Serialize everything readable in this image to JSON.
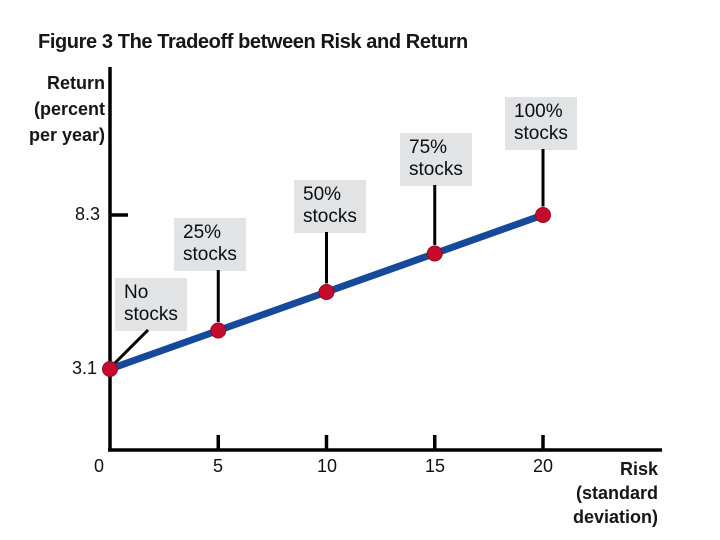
{
  "title": "Figure 3 The Tradeoff between Risk and Return",
  "chart_data": {
    "type": "line",
    "title": "Figure 3 The Tradeoff between Risk and Return",
    "xlabel": "Risk (standard deviation)",
    "ylabel": "Return (percent per year)",
    "x": [
      0,
      5,
      10,
      15,
      20
    ],
    "y": [
      3.1,
      4.4,
      5.7,
      7.0,
      8.3
    ],
    "xlim": [
      0,
      22
    ],
    "ylim": [
      0,
      10
    ],
    "xticks": [
      0,
      5,
      10,
      15,
      20
    ],
    "ytick_marked_values": [
      3.1,
      8.3
    ],
    "grid": "off",
    "legend": "none",
    "line_color": "#17499b",
    "point_color": "#c40a2d",
    "annotation_box_color": "#e2e3e5",
    "annotations": [
      {
        "x": 0,
        "line1": "No",
        "line2": "stocks"
      },
      {
        "x": 5,
        "line1": "25%",
        "line2": "stocks"
      },
      {
        "x": 10,
        "line1": "50%",
        "line2": "stocks"
      },
      {
        "x": 15,
        "line1": "75%",
        "line2": "stocks"
      },
      {
        "x": 20,
        "line1": "100%",
        "line2": "stocks"
      }
    ]
  },
  "labels": {
    "y_axis_lines": [
      "Return",
      "(percent",
      "per year)"
    ],
    "x_axis_lines": [
      "Risk",
      "(standard",
      "deviation)"
    ],
    "y_tick_top": "8.3",
    "y_tick_bottom": "3.1",
    "x_ticks": [
      "0",
      "5",
      "10",
      "15",
      "20"
    ]
  }
}
